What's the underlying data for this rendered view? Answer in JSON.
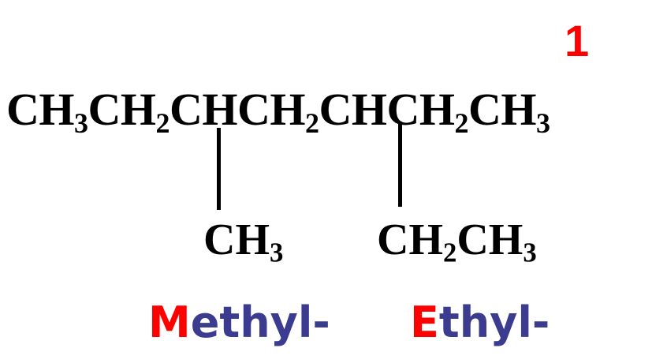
{
  "colors": {
    "formula": "#000000",
    "highlight": "#ff0000",
    "prefix_text": "#3b3b8f"
  },
  "numbering": {
    "label": "1"
  },
  "main_chain": [
    {
      "t": "CH"
    },
    {
      "s": "3"
    },
    {
      "t": "CH"
    },
    {
      "s": "2"
    },
    {
      "t": "CHCH"
    },
    {
      "s": "2"
    },
    {
      "t": "CHCH"
    },
    {
      "s": "2"
    },
    {
      "t": "CH"
    },
    {
      "s": "3"
    }
  ],
  "branches": [
    [
      {
        "t": "CH"
      },
      {
        "s": "3"
      }
    ],
    [
      {
        "t": "CH"
      },
      {
        "s": "2"
      },
      {
        "t": "CH"
      },
      {
        "s": "3"
      }
    ]
  ],
  "prefixes": [
    {
      "first": "M",
      "rest": "ethyl-"
    },
    {
      "first": "E",
      "rest": "thyl-"
    }
  ]
}
